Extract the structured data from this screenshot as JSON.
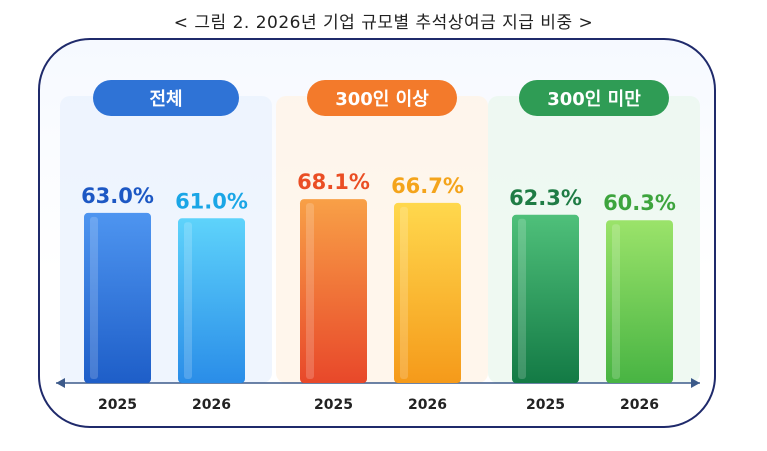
{
  "title": "< 그림 2. 2026년 기업 규모별 추석상여금 지급 비중 >",
  "chart_data": {
    "type": "bar",
    "ylim": [
      0,
      100
    ],
    "groups": [
      {
        "label": "전체",
        "color": "#2f73d6",
        "bars": [
          {
            "x": "2025",
            "value": 63.0,
            "label": "63.0%",
            "color_top": "#4e95f0",
            "color_bottom": "#1e5ec8",
            "text_color": "#1d58c4"
          },
          {
            "x": "2026",
            "value": 61.0,
            "label": "61.0%",
            "color_top": "#5ed3fb",
            "color_bottom": "#2a8de8",
            "text_color": "#1aa6e6"
          }
        ]
      },
      {
        "label": "300인 이상",
        "color": "#f37a2b",
        "bars": [
          {
            "x": "2025",
            "value": 68.1,
            "label": "68.1%",
            "color_top": "#f8a047",
            "color_bottom": "#e8482a",
            "text_color": "#ea4e24"
          },
          {
            "x": "2026",
            "value": 66.7,
            "label": "66.7%",
            "color_top": "#ffd84d",
            "color_bottom": "#f59a1a",
            "text_color": "#f4a41b"
          }
        ]
      },
      {
        "label": "300인 미만",
        "color": "#2f9c55",
        "bars": [
          {
            "x": "2025",
            "value": 62.3,
            "label": "62.3%",
            "color_top": "#4fc07a",
            "color_bottom": "#137a45",
            "text_color": "#1f7c45"
          },
          {
            "x": "2026",
            "value": 60.3,
            "label": "60.3%",
            "color_top": "#9be36a",
            "color_bottom": "#48b443",
            "text_color": "#3da43d"
          }
        ]
      }
    ]
  }
}
